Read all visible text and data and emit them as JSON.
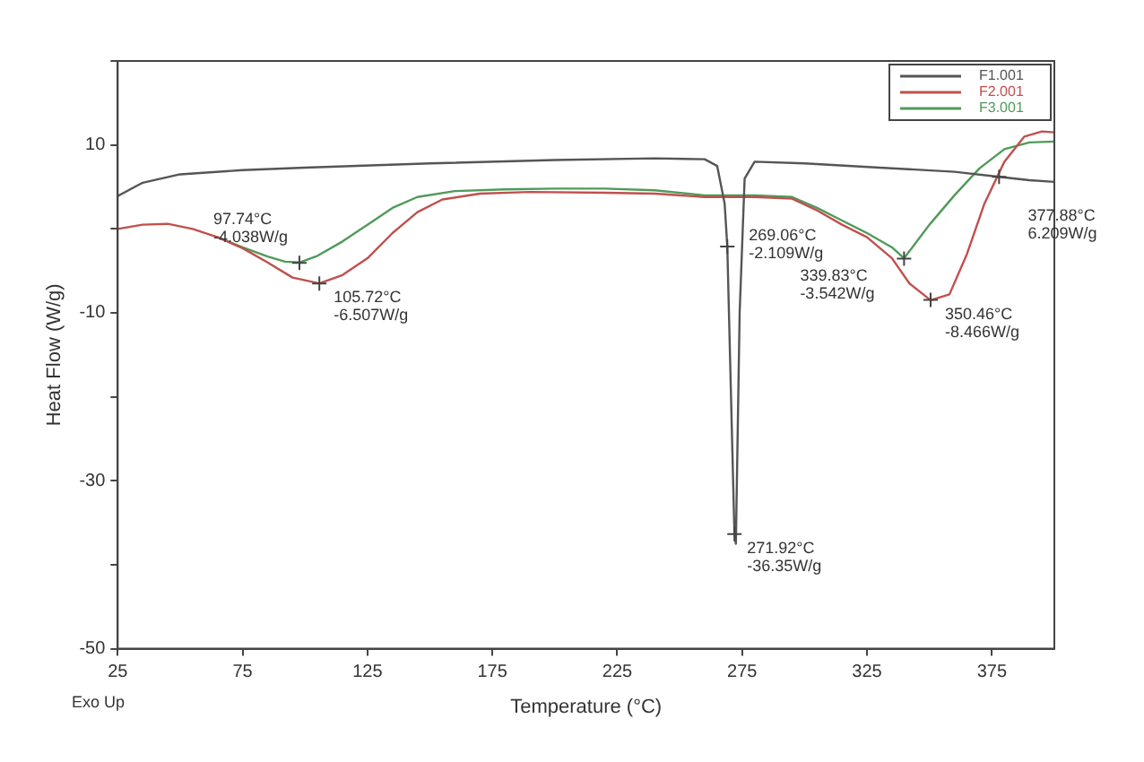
{
  "chart_data": {
    "type": "line",
    "xlabel": "Temperature (°C)",
    "ylabel": "Heat Flow (W/g)",
    "xlim": [
      25,
      400
    ],
    "xticks": [
      25,
      75,
      125,
      175,
      225,
      275,
      325,
      375
    ],
    "ylim": [
      -50,
      20
    ],
    "yticks": [
      {
        "value": 20,
        "label": null
      },
      10,
      {
        "value": 0,
        "label": null
      },
      -10,
      {
        "value": -20,
        "label": null
      },
      -30,
      {
        "value": -40,
        "label": null
      },
      -50
    ],
    "grid": false,
    "legend": "top right",
    "marker": "none",
    "line_style": "solid",
    "series": [
      {
        "name": "F1.001",
        "color": "#555555",
        "x": [
          25,
          35,
          50,
          75,
          100,
          150,
          200,
          240,
          260,
          265,
          268,
          269.06,
          271.92,
          272.5,
          274,
          276,
          280,
          300,
          330,
          360,
          377.88,
          390,
          400
        ],
        "values": [
          3.9,
          5.5,
          6.5,
          7.0,
          7.3,
          7.8,
          8.2,
          8.4,
          8.3,
          7.5,
          3,
          -2.1,
          -36.4,
          -37.5,
          -10,
          6,
          8.0,
          7.8,
          7.3,
          6.8,
          6.2,
          5.8,
          5.6
        ]
      },
      {
        "name": "F2.001",
        "color": "#c0504d",
        "x": [
          25,
          35,
          45,
          55,
          65,
          75,
          85,
          95,
          105.72,
          115,
          125,
          135,
          145,
          155,
          170,
          190,
          220,
          240,
          260,
          280,
          295,
          305,
          315,
          325,
          335,
          342,
          350.46,
          358,
          365,
          372,
          380,
          388,
          395,
          400
        ],
        "values": [
          0,
          0.5,
          0.6,
          0,
          -1,
          -2.3,
          -4,
          -5.8,
          -6.5,
          -5.5,
          -3.5,
          -0.5,
          2.0,
          3.5,
          4.2,
          4.4,
          4.3,
          4.2,
          3.8,
          3.8,
          3.6,
          2.2,
          0.5,
          -1.0,
          -3.5,
          -6.5,
          -8.5,
          -7.8,
          -3,
          3,
          8,
          11,
          11.6,
          11.5
        ]
      },
      {
        "name": "F3.001",
        "color": "#4f9a5a",
        "x": [
          65,
          75,
          85,
          92,
          97.74,
          105,
          115,
          125,
          135,
          145,
          160,
          180,
          200,
          220,
          240,
          260,
          280,
          295,
          305,
          315,
          325,
          335,
          339.83,
          350,
          360,
          370,
          380,
          390,
          400
        ],
        "values": [
          -1,
          -2.2,
          -3.3,
          -3.9,
          -4.0,
          -3.2,
          -1.5,
          0.5,
          2.5,
          3.8,
          4.5,
          4.7,
          4.8,
          4.8,
          4.6,
          4.0,
          4.0,
          3.8,
          2.5,
          1.0,
          -0.5,
          -2.2,
          -3.5,
          0.5,
          4,
          7.2,
          9.5,
          10.3,
          10.4
        ]
      }
    ],
    "annotations": [
      {
        "text": "97.74°C\n-4.038W/g",
        "x": 97.74,
        "y": -4.038
      },
      {
        "text": "105.72°C\n-6.507W/g",
        "x": 105.72,
        "y": -6.507
      },
      {
        "text": "269.06°C\n-2.109W/g",
        "x": 269.06,
        "y": -2.109
      },
      {
        "text": "271.92°C\n-36.35W/g",
        "x": 271.92,
        "y": -36.35
      },
      {
        "text": "339.83°C\n-3.542W/g",
        "x": 339.83,
        "y": -3.542
      },
      {
        "text": "350.46°C\n-8.466W/g",
        "x": 350.46,
        "y": -8.466
      },
      {
        "text": "377.88°C\n6.209W/g",
        "x": 377.88,
        "y": 6.209
      },
      "Exo Up"
    ]
  }
}
